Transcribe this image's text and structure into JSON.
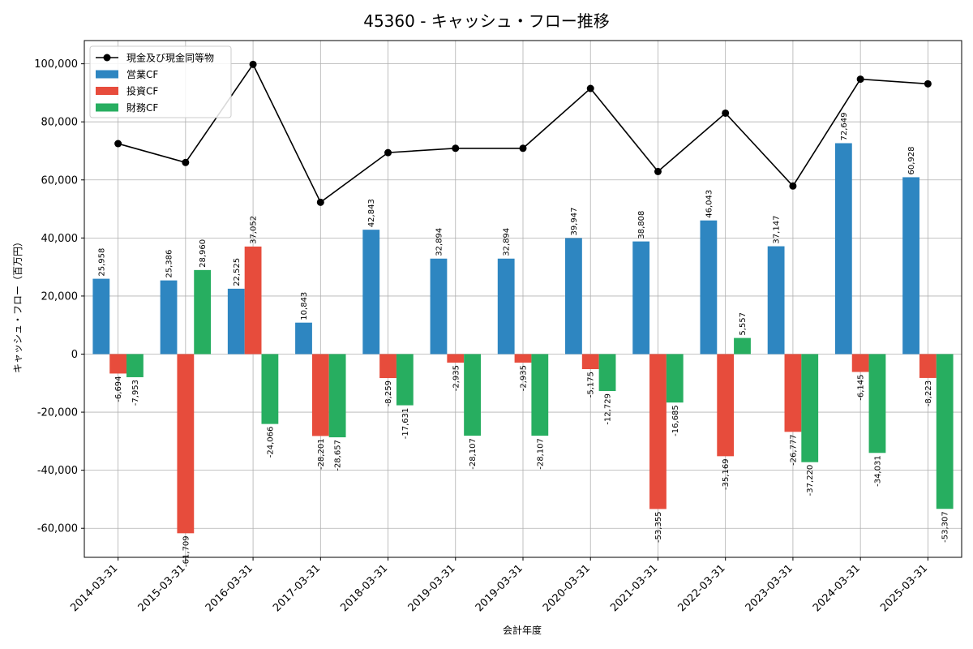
{
  "chart_data": {
    "type": "bar",
    "title": "45360 - キャッシュ・フロー推移",
    "xlabel": "会計年度",
    "ylabel": "キャッシュ・フロー（百万円）",
    "ylim": [
      -70000,
      108000
    ],
    "yticks": [
      -60000,
      -40000,
      -20000,
      0,
      20000,
      40000,
      60000,
      80000,
      100000
    ],
    "ytick_labels": [
      "-60,000",
      "-40,000",
      "-20,000",
      "0",
      "20,000",
      "40,000",
      "60,000",
      "80,000",
      "100,000"
    ],
    "grid": true,
    "legend_position": "top-left",
    "categories": [
      "2014-03-31",
      "2015-03-31",
      "2016-03-31",
      "2017-03-31",
      "2018-03-31",
      "2019-03-31",
      "2019-03-31",
      "2020-03-31",
      "2021-03-31",
      "2022-03-31",
      "2023-03-31",
      "2024-03-31",
      "2025-03-31"
    ],
    "series": [
      {
        "name": "営業CF",
        "kind": "bar",
        "color": "#2e86c1",
        "values": [
          25958,
          25386,
          22525,
          10843,
          42843,
          32894,
          32894,
          39947,
          38808,
          46043,
          37147,
          72649,
          60928
        ],
        "labels": [
          "25,958",
          "25,386",
          "22,525",
          "10,843",
          "42,843",
          "32,894",
          "32,894",
          "39,947",
          "38,808",
          "46,043",
          "37,147",
          "72,649",
          "60,928"
        ]
      },
      {
        "name": "投資CF",
        "kind": "bar",
        "color": "#e74c3c",
        "values": [
          -6694,
          -61709,
          37052,
          -28201,
          -8259,
          -2935,
          -2935,
          -5175,
          -53355,
          -35169,
          -26777,
          -6145,
          -8223
        ],
        "labels": [
          "-6,694",
          "-61,709",
          "37,052",
          "-28,201",
          "-8,259",
          "-2,935",
          "-2,935",
          "-5,175",
          "-53,355",
          "-35,169",
          "-26,777",
          "-6,145",
          "-8,223"
        ]
      },
      {
        "name": "財務CF",
        "kind": "bar",
        "color": "#27ae60",
        "values": [
          -7953,
          28960,
          -24066,
          -28657,
          -17631,
          -28107,
          -28107,
          -12729,
          -16685,
          5557,
          -37220,
          -34031,
          -53307
        ],
        "labels": [
          "-7,953",
          "28,960",
          "-24,066",
          "-28,657",
          "-17,631",
          "-28,107",
          "-28,107",
          "-12,729",
          "-16,685",
          "5,557",
          "-37,220",
          "-34,031",
          "-53,307"
        ]
      },
      {
        "name": "現金及び現金同等物",
        "kind": "line",
        "color": "#000000",
        "values": [
          72500,
          66000,
          99800,
          52300,
          69400,
          70900,
          70900,
          91500,
          62900,
          83000,
          57900,
          94700,
          93100
        ]
      }
    ]
  }
}
